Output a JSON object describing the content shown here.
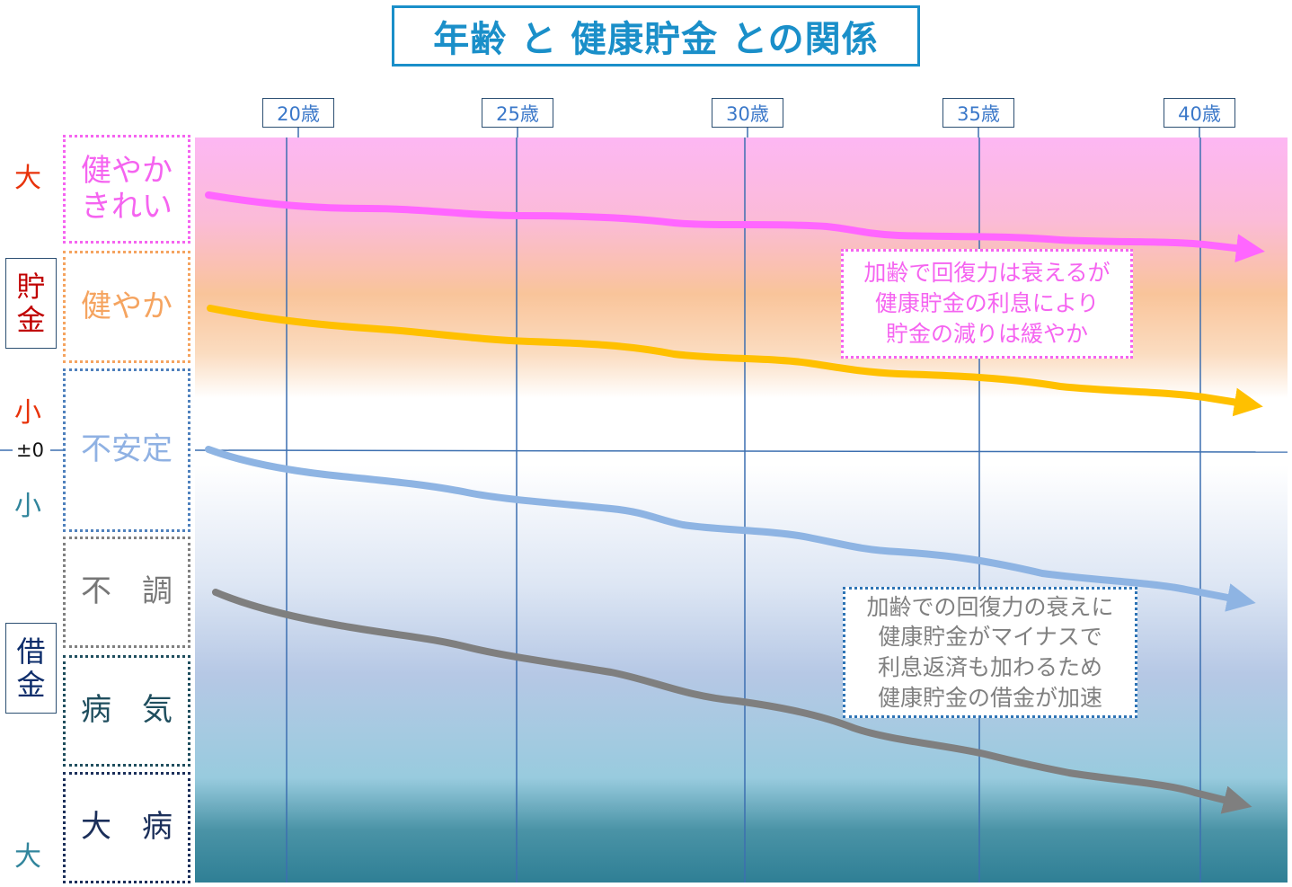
{
  "title": "年齢 と 健康貯金 との関係",
  "age_labels": [
    "20歳",
    "25歳",
    "30歳",
    "35歳",
    "40歳"
  ],
  "side_labels": {
    "large_top": "大",
    "savings": "貯\n金",
    "small_top": "小",
    "zero": "±0",
    "small_bottom": "小",
    "debt": "借\n金",
    "large_bottom": "大"
  },
  "categories": [
    {
      "label": "健やか\nきれい",
      "color": "#f564f0"
    },
    {
      "label": "健やか",
      "color": "#f5a460"
    },
    {
      "label": "不安定",
      "color": "#8fb1e3"
    },
    {
      "label": "不　調",
      "color": "#777777"
    },
    {
      "label": "病　気",
      "color": "#1f4e5e"
    },
    {
      "label": "大　病",
      "color": "#1b2f5a"
    }
  ],
  "notes": {
    "positive": "加齢で回復力は衰えるが\n健康貯金の利息により\n貯金の減りは緩やか",
    "negative": "加齢での回復力の衰えに\n健康貯金がマイナスで\n利息返済も加わるため\n健康貯金の借金が加速"
  },
  "colors": {
    "title": "#1a8fc9",
    "line_pink": "#ff66ff",
    "line_orange": "#ffc000",
    "line_blue": "#8eb4e3",
    "line_gray": "#7f7f7f",
    "side_large_top": "#e8320a",
    "side_savings": "#c00000",
    "side_small_top": "#e8320a",
    "side_small_bottom": "#31859c",
    "side_debt": "#0d2d6b",
    "side_large_bottom": "#31859c"
  }
}
